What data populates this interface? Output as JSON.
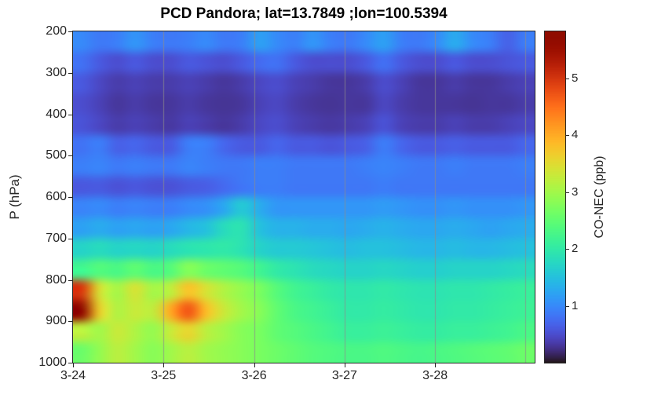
{
  "colors": {
    "background": "#ffffff",
    "title_text": "#000000",
    "axis_text": "#262626",
    "axis_border": "#262626",
    "gridline": "#8c8c8c"
  },
  "chart_data": {
    "type": "heatmap",
    "title": "PCD Pandora; lat=13.7849 ;lon=100.5394",
    "xlabel": "",
    "ylabel": "P (hPa)",
    "colorbar_label": "CO-NEC (ppb)",
    "colormap": "turbo",
    "values_unit": "ppb",
    "color_range": [
      0,
      5.83
    ],
    "colorbar_ticks": [
      1,
      2,
      3,
      4,
      5
    ],
    "y_range_hPa": [
      200,
      1000
    ],
    "y_axis_direction": "pressure increases downward",
    "y_ticks_hPa": [
      200,
      300,
      400,
      500,
      600,
      700,
      800,
      900,
      1000
    ],
    "x_tick_labels": [
      "3-24",
      "3-25",
      "3-26",
      "3-27",
      "3-28"
    ],
    "x_tick_days": [
      0,
      1,
      2,
      3,
      4
    ],
    "x_range_days": [
      0,
      5.1
    ],
    "x_gridline_days": [
      1,
      2,
      3,
      4,
      5
    ],
    "grid": "vertical gridlines at day boundaries",
    "legend_position": "colorbar right",
    "pressure_band_edges_hPa": [
      200,
      250,
      300,
      350,
      400,
      450,
      500,
      550,
      600,
      650,
      700,
      750,
      800,
      850,
      900,
      950,
      1000
    ],
    "n_time_steps": 26,
    "values_ppb_matrix": [
      [
        1.0,
        0.85,
        0.9,
        1.1,
        0.9,
        0.85,
        0.9,
        1.0,
        0.85,
        0.9,
        1.2,
        1.0,
        0.9,
        1.1,
        0.9,
        0.85,
        1.0,
        1.2,
        0.9,
        0.85,
        1.0,
        1.3,
        1.0,
        0.9,
        0.65,
        0.9
      ],
      [
        0.8,
        0.6,
        0.5,
        0.6,
        0.5,
        0.5,
        0.6,
        0.55,
        0.5,
        0.6,
        0.75,
        0.8,
        0.6,
        0.5,
        0.5,
        0.5,
        0.6,
        0.8,
        0.6,
        0.5,
        0.5,
        0.6,
        0.5,
        0.5,
        0.55,
        0.6
      ],
      [
        0.6,
        0.45,
        0.35,
        0.4,
        0.35,
        0.35,
        0.4,
        0.35,
        0.3,
        0.35,
        0.45,
        0.5,
        0.4,
        0.35,
        0.3,
        0.3,
        0.35,
        0.5,
        0.4,
        0.3,
        0.3,
        0.35,
        0.3,
        0.3,
        0.35,
        0.4
      ],
      [
        0.5,
        0.4,
        0.3,
        0.35,
        0.3,
        0.3,
        0.35,
        0.3,
        0.28,
        0.3,
        0.4,
        0.45,
        0.35,
        0.3,
        0.28,
        0.3,
        0.3,
        0.45,
        0.35,
        0.3,
        0.3,
        0.3,
        0.28,
        0.3,
        0.3,
        0.35
      ],
      [
        0.55,
        0.45,
        0.35,
        0.4,
        0.35,
        0.32,
        0.4,
        0.35,
        0.3,
        0.35,
        0.45,
        0.5,
        0.4,
        0.35,
        0.32,
        0.35,
        0.4,
        0.55,
        0.4,
        0.35,
        0.35,
        0.4,
        0.35,
        0.35,
        0.4,
        0.45
      ],
      [
        0.8,
        0.9,
        0.65,
        0.7,
        0.6,
        0.6,
        0.9,
        0.9,
        0.7,
        0.6,
        0.6,
        0.7,
        0.6,
        0.6,
        0.55,
        0.6,
        0.65,
        0.9,
        0.7,
        0.6,
        0.6,
        0.65,
        0.6,
        0.6,
        0.6,
        0.7
      ],
      [
        0.9,
        0.95,
        0.85,
        0.9,
        0.85,
        0.85,
        0.95,
        0.9,
        0.85,
        0.85,
        0.9,
        0.9,
        0.85,
        0.85,
        0.85,
        0.85,
        0.9,
        0.95,
        0.9,
        0.85,
        0.85,
        0.9,
        0.85,
        0.85,
        0.85,
        0.9
      ],
      [
        0.6,
        0.62,
        0.55,
        0.6,
        0.55,
        0.55,
        0.62,
        0.65,
        0.75,
        0.85,
        0.9,
        0.9,
        0.85,
        0.85,
        0.85,
        0.85,
        0.85,
        0.9,
        0.85,
        0.85,
        0.85,
        0.85,
        0.85,
        0.85,
        0.85,
        0.85
      ],
      [
        0.95,
        1.0,
        0.9,
        0.95,
        0.9,
        0.9,
        1.0,
        1.05,
        1.25,
        1.6,
        1.3,
        1.1,
        1.1,
        1.1,
        1.1,
        1.1,
        1.1,
        1.15,
        1.1,
        1.05,
        1.05,
        1.1,
        1.05,
        1.05,
        1.05,
        1.1
      ],
      [
        1.2,
        1.3,
        1.2,
        1.25,
        1.2,
        1.25,
        1.4,
        1.5,
        1.8,
        1.9,
        1.5,
        1.35,
        1.35,
        1.3,
        1.3,
        1.25,
        1.3,
        1.35,
        1.3,
        1.25,
        1.25,
        1.3,
        1.25,
        1.2,
        1.25,
        1.3
      ],
      [
        1.7,
        1.8,
        1.7,
        1.75,
        1.7,
        1.8,
        1.9,
        1.95,
        2.0,
        1.9,
        1.7,
        1.6,
        1.6,
        1.55,
        1.5,
        1.45,
        1.5,
        1.5,
        1.45,
        1.4,
        1.4,
        1.45,
        1.4,
        1.4,
        1.45,
        1.5
      ],
      [
        2.2,
        2.4,
        2.3,
        2.5,
        2.3,
        2.4,
        2.8,
        2.6,
        2.5,
        2.4,
        2.2,
        2.0,
        1.9,
        1.8,
        1.75,
        1.7,
        1.7,
        1.75,
        1.7,
        1.65,
        1.65,
        1.7,
        1.7,
        1.7,
        1.75,
        1.8
      ],
      [
        5.0,
        3.4,
        3.0,
        3.4,
        3.0,
        3.2,
        3.8,
        3.4,
        3.1,
        2.9,
        2.7,
        2.4,
        2.2,
        2.1,
        2.0,
        1.95,
        1.95,
        2.0,
        1.95,
        1.9,
        1.9,
        1.95,
        1.95,
        2.0,
        2.05,
        2.1
      ],
      [
        5.7,
        3.6,
        3.1,
        3.3,
        3.2,
        4.0,
        4.7,
        3.8,
        3.3,
        3.0,
        2.8,
        2.5,
        2.3,
        2.2,
        2.1,
        2.0,
        2.0,
        2.05,
        2.0,
        1.95,
        1.95,
        2.0,
        2.0,
        2.05,
        2.1,
        2.15
      ],
      [
        3.2,
        3.0,
        3.3,
        3.1,
        2.9,
        3.3,
        3.6,
        3.2,
        3.0,
        2.8,
        2.7,
        2.5,
        2.4,
        2.3,
        2.2,
        2.1,
        2.1,
        2.15,
        2.1,
        2.05,
        2.05,
        2.1,
        2.1,
        2.15,
        2.2,
        2.3
      ],
      [
        2.6,
        2.9,
        3.2,
        3.0,
        2.8,
        3.0,
        3.2,
        3.0,
        2.9,
        2.8,
        2.7,
        2.6,
        2.5,
        2.4,
        2.35,
        2.3,
        2.3,
        2.35,
        2.3,
        2.25,
        2.3,
        2.35,
        2.4,
        2.45,
        2.5,
        2.6
      ]
    ]
  }
}
